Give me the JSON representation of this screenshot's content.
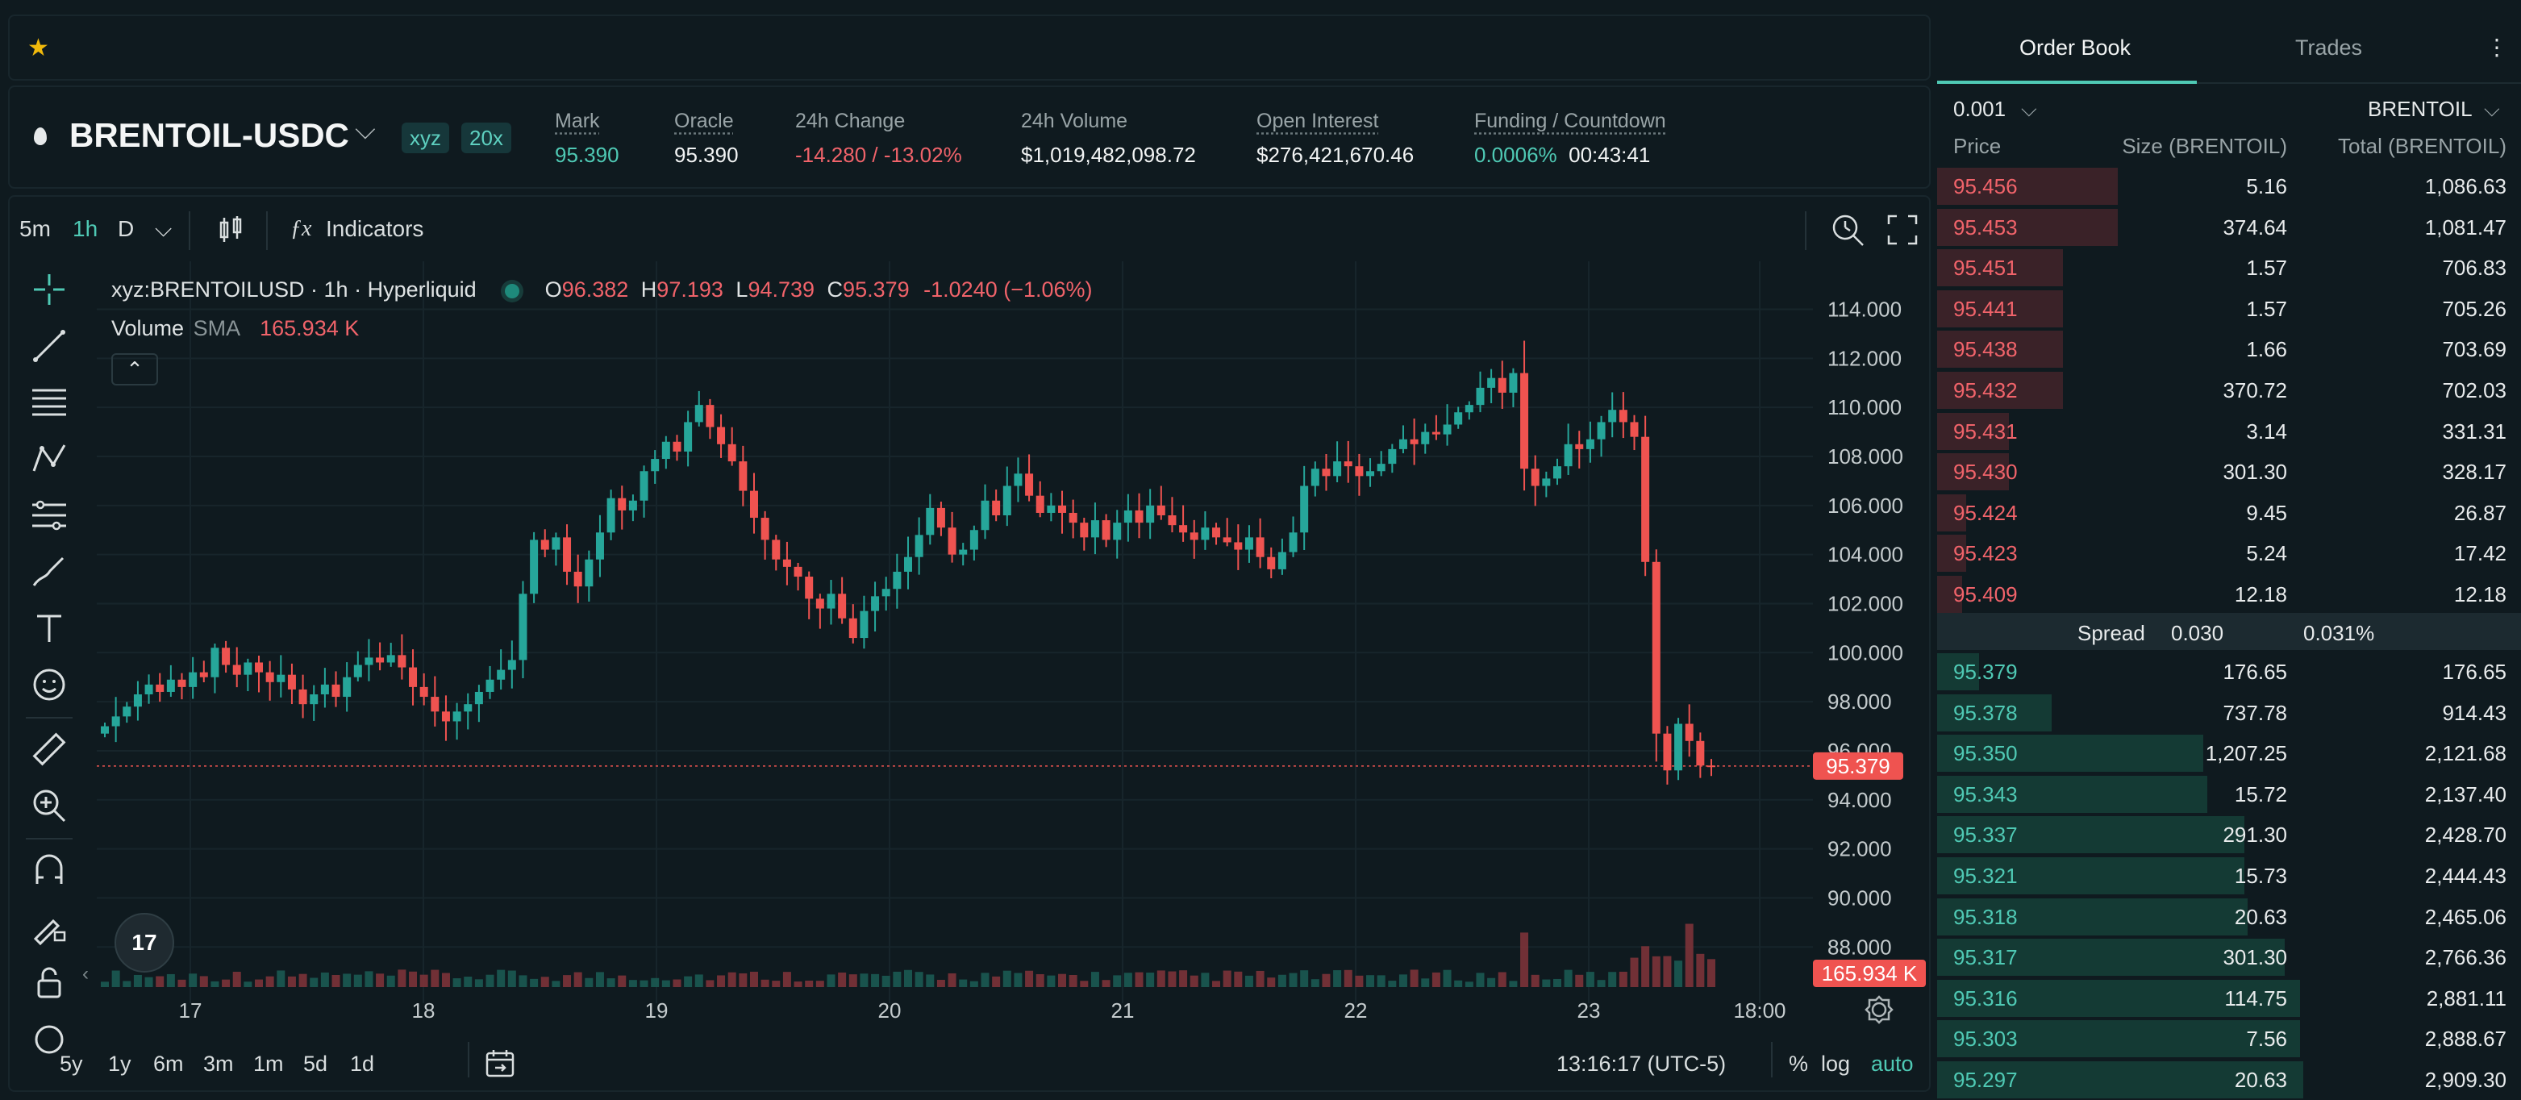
{
  "topbar": {
    "star_icon": "star-icon"
  },
  "header": {
    "pair": "BRENTOIL-USDC",
    "badge_dex": "xyz",
    "badge_leverage": "20x",
    "mark_label": "Mark",
    "mark_value": "95.390",
    "oracle_label": "Oracle",
    "oracle_value": "95.390",
    "change_label": "24h Change",
    "change_value": "-14.280 / -13.02%",
    "volume_label": "24h Volume",
    "volume_value": "$1,019,482,098.72",
    "oi_label": "Open Interest",
    "oi_value": "$276,421,670.46",
    "funding_label": "Funding / Countdown",
    "funding_value": "0.0006%",
    "countdown_value": "00:43:41"
  },
  "toolbar": {
    "tf_5m": "5m",
    "tf_1h": "1h",
    "tf_d": "D",
    "indicators": "Indicators"
  },
  "legend": {
    "symbol": "xyz:BRENTOILUSD · 1h · Hyperliquid",
    "o_label": "O",
    "o_value": "96.382",
    "h_label": "H",
    "h_value": "97.193",
    "l_label": "L",
    "l_value": "94.739",
    "c_label": "C",
    "c_value": "95.379",
    "change": "-1.0240 (−1.06%)",
    "volume_label": "Volume",
    "sma_label": "SMA",
    "volume_value": "165.934 K"
  },
  "bottombar": {
    "ranges": [
      "5y",
      "1y",
      "6m",
      "3m",
      "1m",
      "5d",
      "1d"
    ],
    "clock": "13:16:17 (UTC-5)",
    "pct": "%",
    "log": "log",
    "auto": "auto"
  },
  "chart_data": {
    "type": "candlestick",
    "x_tick_labels": [
      "17",
      "18",
      "19",
      "20",
      "21",
      "22",
      "23",
      "18:00"
    ],
    "y_tick_labels": [
      "114.000",
      "112.000",
      "110.000",
      "108.000",
      "106.000",
      "104.000",
      "102.000",
      "100.000",
      "98.000",
      "96.000",
      "94.000",
      "92.000",
      "90.000",
      "88.000"
    ],
    "ylim": [
      86.2,
      115.3
    ],
    "last_price_label": "95.379",
    "last_price": 95.379,
    "volume_label": "165.934 K",
    "colors": {
      "up": "#26a69a",
      "down": "#ef5350"
    },
    "candles_close": [
      97.0,
      97.4,
      97.8,
      98.3,
      98.7,
      98.4,
      98.9,
      98.6,
      99.2,
      99.0,
      100.2,
      99.5,
      99.1,
      99.6,
      99.2,
      98.8,
      99.1,
      98.5,
      97.9,
      98.3,
      98.7,
      98.2,
      99.0,
      99.5,
      99.8,
      99.6,
      99.9,
      99.4,
      98.6,
      98.2,
      97.6,
      97.2,
      97.6,
      97.9,
      98.4,
      98.9,
      99.3,
      99.7,
      102.4,
      104.6,
      104.2,
      104.7,
      103.3,
      102.7,
      103.8,
      104.9,
      106.3,
      105.8,
      106.2,
      107.4,
      107.9,
      108.6,
      108.2,
      109.4,
      110.1,
      109.2,
      108.5,
      107.8,
      106.6,
      105.5,
      104.6,
      103.8,
      103.5,
      103.1,
      102.2,
      101.8,
      102.4,
      101.4,
      100.6,
      101.7,
      102.3,
      102.6,
      103.3,
      103.9,
      104.8,
      105.9,
      105.1,
      104.0,
      104.2,
      105.0,
      106.2,
      105.6,
      106.8,
      107.3,
      106.4,
      105.7,
      106.0,
      105.7,
      105.3,
      104.7,
      105.4,
      104.6,
      105.3,
      105.8,
      105.3,
      106.0,
      105.6,
      105.2,
      104.9,
      104.6,
      105.1,
      104.7,
      104.5,
      104.2,
      104.7,
      103.9,
      103.4,
      104.1,
      104.9,
      106.8,
      107.5,
      107.2,
      107.8,
      107.6,
      107.2,
      107.4,
      107.7,
      108.3,
      108.7,
      108.5,
      109.0,
      108.9,
      109.3,
      109.8,
      110.1,
      110.8,
      111.2,
      110.6,
      111.4,
      107.5,
      106.8,
      107.1,
      107.6,
      108.5,
      108.3,
      108.7,
      109.4,
      109.9,
      109.4,
      108.8,
      103.7,
      96.7,
      95.2,
      97.1,
      96.4,
      95.4,
      95.379
    ],
    "volume_max_k": 1200
  },
  "orderbook": {
    "tab_book": "Order Book",
    "tab_trades": "Trades",
    "tick": "0.001",
    "unit": "BRENTOIL",
    "col_price": "Price",
    "col_size": "Size (BRENTOIL)",
    "col_total": "Total (BRENTOIL)",
    "asks": [
      {
        "price": "95.456",
        "size": "5.16",
        "total": "1,086.63",
        "depth": 0.37
      },
      {
        "price": "95.453",
        "size": "374.64",
        "total": "1,081.47",
        "depth": 0.37
      },
      {
        "price": "95.451",
        "size": "1.57",
        "total": "706.83",
        "depth": 0.24
      },
      {
        "price": "95.441",
        "size": "1.57",
        "total": "705.26",
        "depth": 0.24
      },
      {
        "price": "95.438",
        "size": "1.66",
        "total": "703.69",
        "depth": 0.24
      },
      {
        "price": "95.432",
        "size": "370.72",
        "total": "702.03",
        "depth": 0.24
      },
      {
        "price": "95.431",
        "size": "3.14",
        "total": "331.31",
        "depth": 0.11
      },
      {
        "price": "95.430",
        "size": "301.30",
        "total": "328.17",
        "depth": 0.11
      },
      {
        "price": "95.424",
        "size": "9.45",
        "total": "26.87",
        "depth": 0.01
      },
      {
        "price": "95.423",
        "size": "5.24",
        "total": "17.42",
        "depth": 0.01
      },
      {
        "price": "95.409",
        "size": "12.18",
        "total": "12.18",
        "depth": 0.0
      }
    ],
    "spread_label": "Spread",
    "spread_value": "0.030",
    "spread_pct": "0.031%",
    "bids": [
      {
        "price": "95.379",
        "size": "176.65",
        "total": "176.65",
        "depth": 0.06
      },
      {
        "price": "95.378",
        "size": "737.78",
        "total": "914.43",
        "depth": 0.31
      },
      {
        "price": "95.350",
        "size": "1,207.25",
        "total": "2,121.68",
        "depth": 0.72
      },
      {
        "price": "95.343",
        "size": "15.72",
        "total": "2,137.40",
        "depth": 0.73
      },
      {
        "price": "95.337",
        "size": "291.30",
        "total": "2,428.70",
        "depth": 0.83
      },
      {
        "price": "95.321",
        "size": "15.73",
        "total": "2,444.43",
        "depth": 0.83
      },
      {
        "price": "95.318",
        "size": "20.63",
        "total": "2,465.06",
        "depth": 0.84
      },
      {
        "price": "95.317",
        "size": "301.30",
        "total": "2,766.36",
        "depth": 0.94
      },
      {
        "price": "95.316",
        "size": "114.75",
        "total": "2,881.11",
        "depth": 0.98
      },
      {
        "price": "95.303",
        "size": "7.56",
        "total": "2,888.67",
        "depth": 0.98
      },
      {
        "price": "95.297",
        "size": "20.63",
        "total": "2,909.30",
        "depth": 0.99
      }
    ]
  }
}
